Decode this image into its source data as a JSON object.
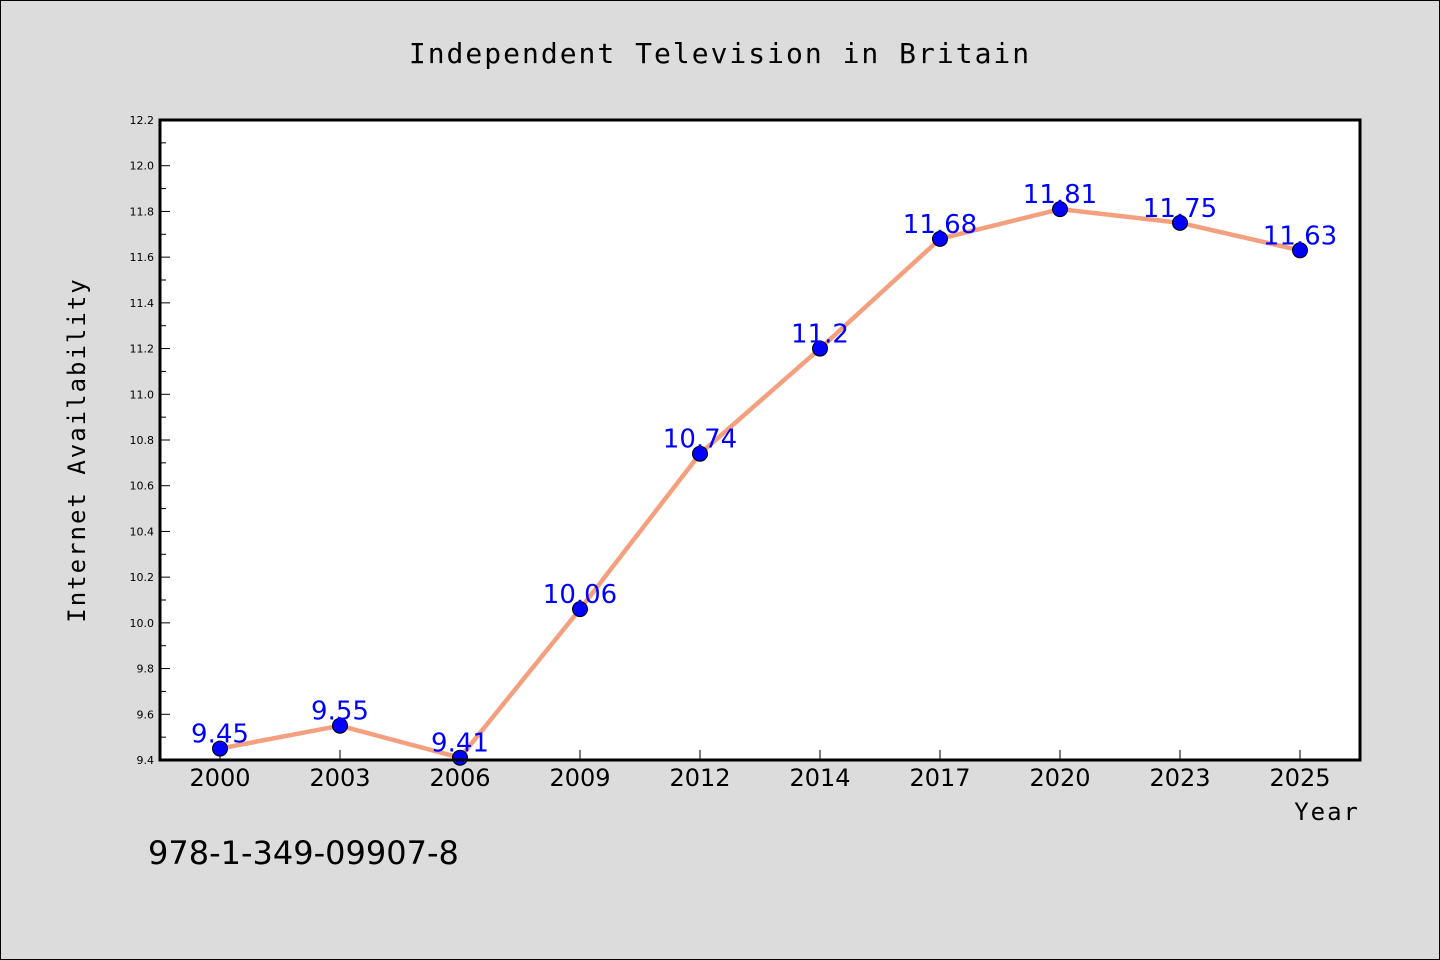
{
  "chart_data": {
    "type": "line",
    "title": "Independent Television in Britain",
    "xlabel": "Year",
    "ylabel": "Internet Availability",
    "categories": [
      "2000",
      "2003",
      "2006",
      "2009",
      "2012",
      "2014",
      "2017",
      "2020",
      "2023",
      "2025"
    ],
    "series": [
      {
        "values": [
          9.45,
          9.55,
          9.41,
          10.06,
          10.74,
          11.2,
          11.68,
          11.81,
          11.75,
          11.63
        ],
        "data_labels": [
          "9.45",
          "9.55",
          "9.41",
          "10.06",
          "10.74",
          "11.2",
          "11.68",
          "11.81",
          "11.75",
          "11.63"
        ]
      }
    ],
    "ylim": [
      9.4,
      12.2
    ],
    "yticks": [
      "9.4",
      "9.6",
      "9.8",
      "10.0",
      "10.2",
      "10.4",
      "10.6",
      "10.8",
      "11.0",
      "11.2",
      "11.4",
      "11.6",
      "11.8",
      "12.0",
      "12.2"
    ],
    "grid": false,
    "colors": {
      "background": "#dcdcdc",
      "plot_area": "#ffffff",
      "line": "#f4a07f",
      "marker": "#0000ff",
      "data_label": "#0000ff",
      "text": "#000000"
    }
  },
  "footnote": "978-1-349-09907-8"
}
